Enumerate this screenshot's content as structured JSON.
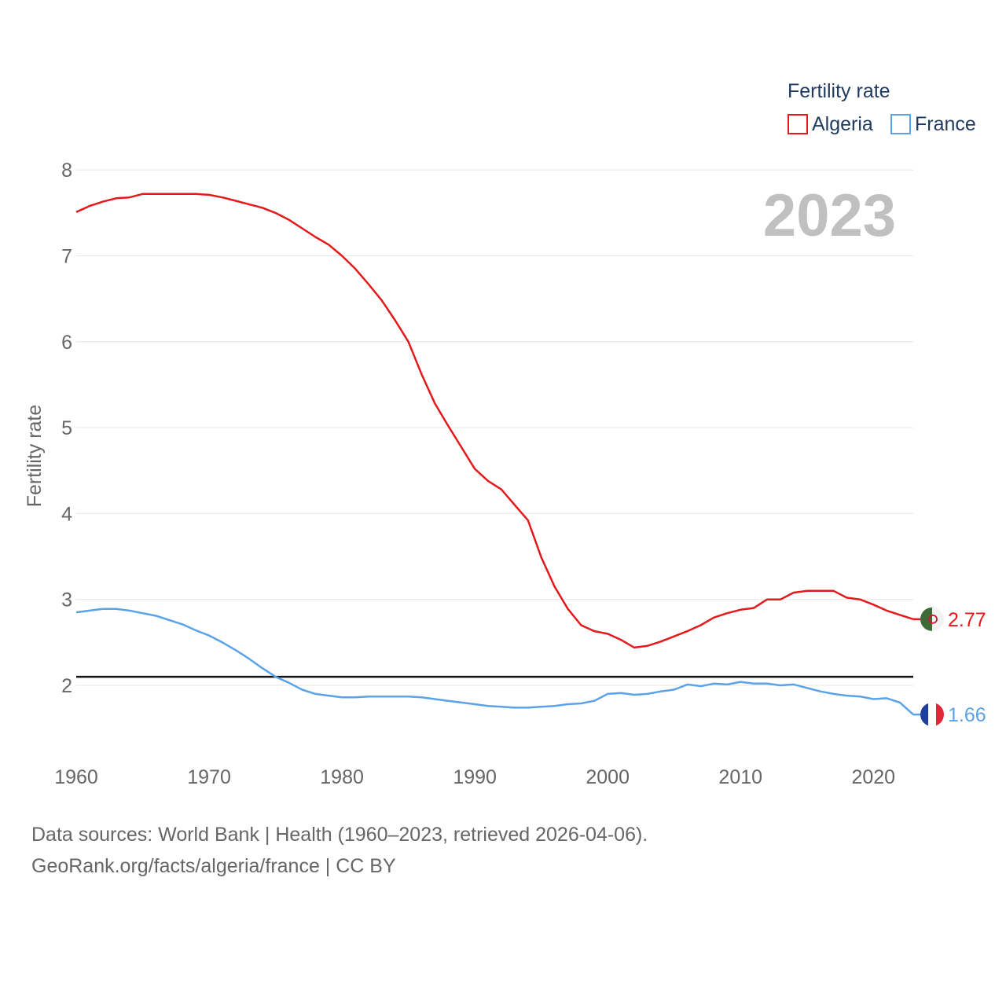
{
  "chart_data": {
    "type": "line",
    "big_year_label": "2023",
    "ylabel": "Fertility rate",
    "xlabel": "",
    "xlim": [
      1960,
      2023
    ],
    "ylim": [
      1.5,
      8
    ],
    "yticks": [
      "2",
      "3",
      "4",
      "5",
      "6",
      "7",
      "8"
    ],
    "xticks": [
      "1960",
      "1970",
      "1980",
      "1990",
      "2000",
      "2010",
      "2020"
    ],
    "legend": {
      "title": "Fertility rate",
      "position": "top-right"
    },
    "reference_line": {
      "y": 2.1
    },
    "x": [
      1960,
      1961,
      1962,
      1963,
      1964,
      1965,
      1966,
      1967,
      1968,
      1969,
      1970,
      1971,
      1972,
      1973,
      1974,
      1975,
      1976,
      1977,
      1978,
      1979,
      1980,
      1981,
      1982,
      1983,
      1984,
      1985,
      1986,
      1987,
      1988,
      1989,
      1990,
      1991,
      1992,
      1993,
      1994,
      1995,
      1996,
      1997,
      1998,
      1999,
      2000,
      2001,
      2002,
      2003,
      2004,
      2005,
      2006,
      2007,
      2008,
      2009,
      2010,
      2011,
      2012,
      2013,
      2014,
      2015,
      2016,
      2017,
      2018,
      2019,
      2020,
      2021,
      2022,
      2023
    ],
    "series": [
      {
        "name": "Algeria",
        "color": "#e31a1c",
        "end_label": "2.77",
        "flag": "algeria-flag",
        "values": [
          7.51,
          7.58,
          7.63,
          7.67,
          7.68,
          7.72,
          7.72,
          7.72,
          7.72,
          7.72,
          7.71,
          7.68,
          7.64,
          7.6,
          7.56,
          7.5,
          7.42,
          7.32,
          7.22,
          7.13,
          7.0,
          6.85,
          6.67,
          6.48,
          6.25,
          6.0,
          5.62,
          5.28,
          5.02,
          4.77,
          4.52,
          4.38,
          4.28,
          4.1,
          3.92,
          3.49,
          3.15,
          2.89,
          2.7,
          2.63,
          2.6,
          2.53,
          2.44,
          2.46,
          2.51,
          2.57,
          2.63,
          2.7,
          2.79,
          2.84,
          2.88,
          2.9,
          3.0,
          3.0,
          3.08,
          3.1,
          3.1,
          3.1,
          3.02,
          3.0,
          2.94,
          2.87,
          2.82,
          2.77
        ]
      },
      {
        "name": "France",
        "color": "#5aa3e8",
        "end_label": "1.66",
        "flag": "france-flag",
        "values": [
          2.85,
          2.87,
          2.89,
          2.89,
          2.87,
          2.84,
          2.81,
          2.76,
          2.71,
          2.64,
          2.58,
          2.5,
          2.41,
          2.31,
          2.2,
          2.1,
          2.03,
          1.95,
          1.9,
          1.88,
          1.86,
          1.86,
          1.87,
          1.87,
          1.87,
          1.87,
          1.86,
          1.84,
          1.82,
          1.8,
          1.78,
          1.76,
          1.75,
          1.74,
          1.74,
          1.75,
          1.76,
          1.78,
          1.79,
          1.82,
          1.9,
          1.91,
          1.89,
          1.9,
          1.93,
          1.95,
          2.01,
          1.99,
          2.02,
          2.01,
          2.04,
          2.02,
          2.02,
          2.0,
          2.01,
          1.97,
          1.93,
          1.9,
          1.88,
          1.87,
          1.84,
          1.85,
          1.8,
          1.66
        ]
      }
    ]
  },
  "footer": {
    "sources": "Data sources: World Bank | Health (1960–2023, retrieved 2026-04-06).",
    "credit": "GeoRank.org/facts/algeria/france | CC BY"
  },
  "colors": {
    "axis_text": "#666666",
    "legend_text": "#1f3a5f",
    "year_label": "#c0c0c0",
    "grid": "#e6e6e6"
  }
}
